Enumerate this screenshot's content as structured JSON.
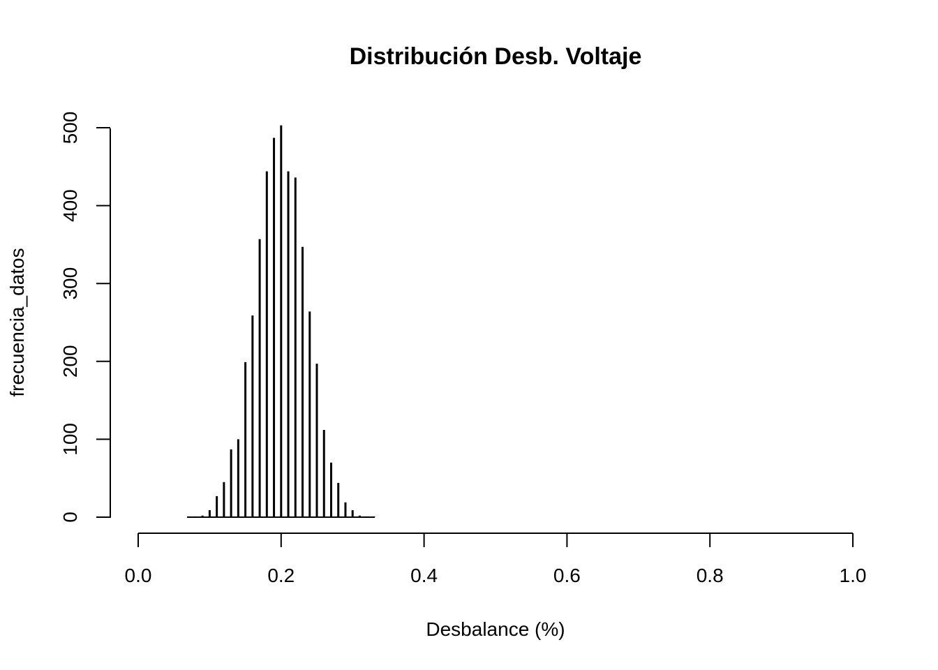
{
  "chart_data": {
    "type": "bar",
    "title": "Distribución Desb. Voltaje",
    "xlabel": "Desbalance (%)",
    "ylabel": "frecuencia_datos",
    "xlim": [
      0,
      1
    ],
    "ylim": [
      0,
      500
    ],
    "x_ticks": [
      "0.0",
      "0.2",
      "0.4",
      "0.6",
      "0.8",
      "1.0"
    ],
    "y_ticks": [
      "0",
      "100",
      "200",
      "300",
      "400",
      "500"
    ],
    "grid": false,
    "bar_color": "#000000",
    "x": [
      0.07,
      0.08,
      0.09,
      0.1,
      0.11,
      0.12,
      0.13,
      0.14,
      0.15,
      0.16,
      0.17,
      0.18,
      0.19,
      0.2,
      0.21,
      0.22,
      0.23,
      0.24,
      0.25,
      0.26,
      0.27,
      0.28,
      0.29,
      0.3,
      0.31,
      0.32,
      0.33
    ],
    "values": [
      1,
      1,
      2,
      9,
      27,
      45,
      87,
      100,
      199,
      259,
      357,
      444,
      487,
      503,
      444,
      436,
      347,
      264,
      197,
      112,
      70,
      44,
      19,
      9,
      2,
      1,
      1
    ]
  }
}
